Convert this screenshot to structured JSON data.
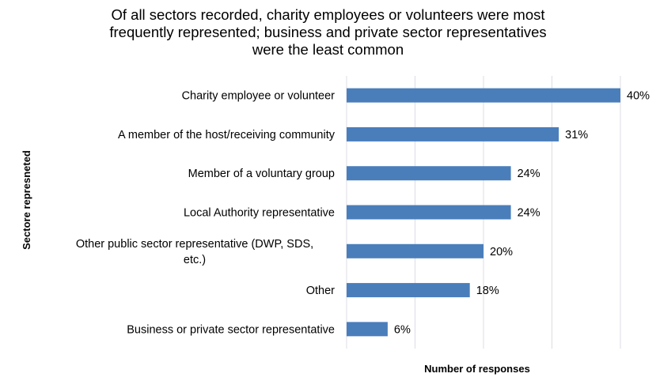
{
  "chart_data": {
    "type": "bar",
    "orientation": "horizontal",
    "title": "Of all sectors recorded, charity employees or volunteers were most\nfrequently represented;  business and private sector representatives\nwere the least common",
    "xlabel": "Number of responses",
    "ylabel": "Sectore represneted",
    "categories": [
      [
        "Charity employee or volunteer"
      ],
      [
        "A member of the host/receiving community"
      ],
      [
        "Member of a voluntary group"
      ],
      [
        "Local Authority representative"
      ],
      [
        "Other public sector representative (DWP, SDS,",
        "etc.)"
      ],
      [
        "Other"
      ],
      [
        "Business or private sector representative"
      ]
    ],
    "values": [
      40,
      31,
      24,
      24,
      20,
      18,
      6
    ],
    "value_labels": [
      "40%",
      "31%",
      "24%",
      "24%",
      "20%",
      "18%",
      "6%"
    ],
    "xlim": [
      0,
      40
    ],
    "grid": true,
    "bar_color": "#4a7ebb"
  }
}
